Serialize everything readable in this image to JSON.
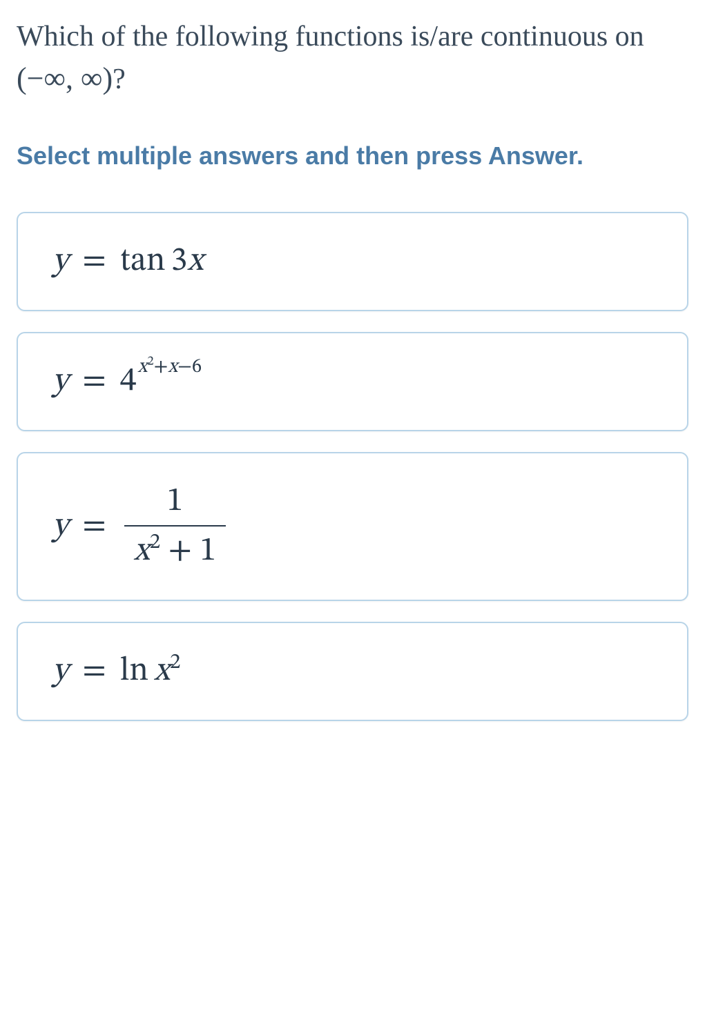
{
  "question": {
    "text_prefix": "Which of the following functions is/are continuous on ",
    "interval": "(−∞, ∞)",
    "text_suffix": "?"
  },
  "instruction": "Select multiple answers and then press Answer.",
  "options": [
    {
      "id": "opt-1",
      "y": "y",
      "eq": "=",
      "fn": "tan",
      "arg_coef": "3",
      "arg_var": "x"
    },
    {
      "id": "opt-2",
      "y": "y",
      "eq": "=",
      "base": "4",
      "exp_term1_var": "x",
      "exp_term1_pow": "2",
      "exp_plus": "+",
      "exp_term2": "x",
      "exp_minus": "−",
      "exp_term3": "6"
    },
    {
      "id": "opt-3",
      "y": "y",
      "eq": "=",
      "num": "1",
      "den_var": "x",
      "den_pow": "2",
      "den_plus": " + ",
      "den_const": "1"
    },
    {
      "id": "opt-4",
      "y": "y",
      "eq": "=",
      "fn": "ln",
      "arg_var": "x",
      "arg_pow": "2"
    }
  ],
  "colors": {
    "question_text": "#3a4a5a",
    "instruction_text": "#4a7ba6",
    "option_border": "#b8d4e8",
    "math_text": "#2a3a4a",
    "background": "#ffffff"
  },
  "typography": {
    "question_fontsize": 42,
    "instruction_fontsize": 36,
    "math_fontsize": 48
  }
}
